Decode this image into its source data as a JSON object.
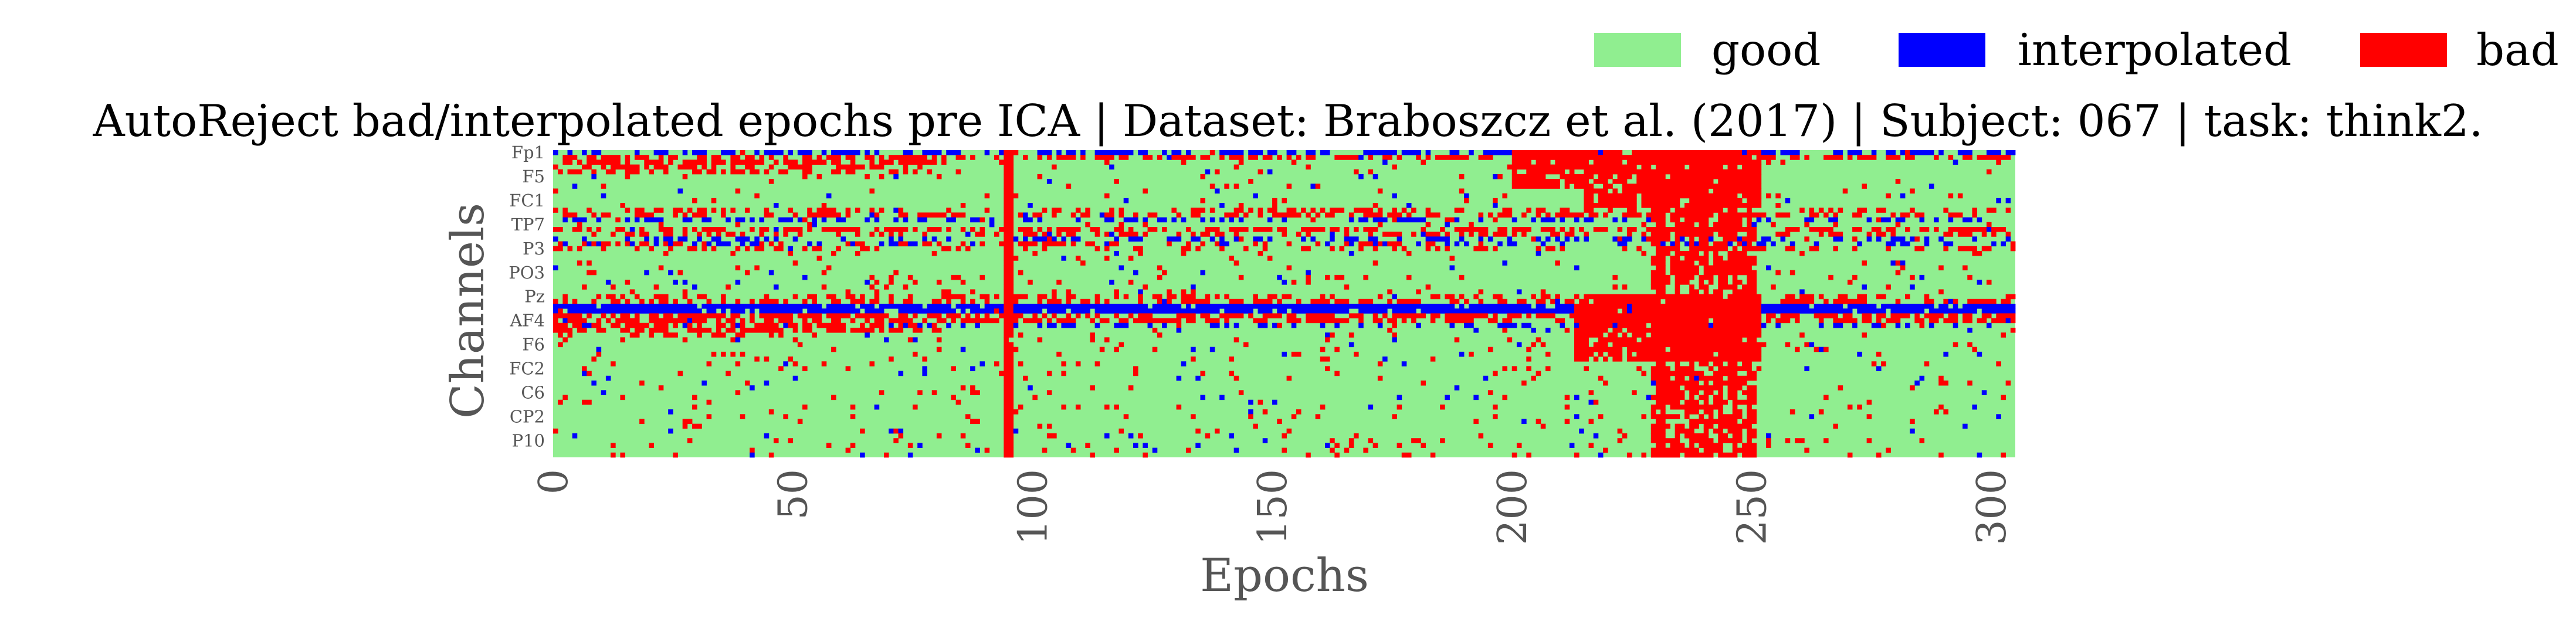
{
  "chart_data": {
    "type": "heatmap",
    "title": "AutoReject bad/interpolated epochs pre ICA | Dataset: Braboszcz et al. (2017) | Subject: 067 | task: think2.",
    "xlabel": "Epochs",
    "ylabel": "Channels",
    "xlim": [
      0,
      305
    ],
    "x_ticks": [
      "0",
      "50",
      "100",
      "150",
      "200",
      "250",
      "300"
    ],
    "y_tick_labels": [
      "Fp1",
      "F5",
      "FC1",
      "TP7",
      "P3",
      "PO3",
      "Pz",
      "AF4",
      "F6",
      "FC2",
      "C6",
      "CP2",
      "P10"
    ],
    "n_channels": 64,
    "legend": {
      "placement": "top-right",
      "entries": [
        {
          "label": "good",
          "color": "#90ee90"
        },
        {
          "label": "interpolated",
          "color": "#0000ff"
        },
        {
          "label": "bad",
          "color": "#ff0000"
        }
      ]
    },
    "colors": {
      "good": "#90ee90",
      "interpolated": "#0000ff",
      "bad": "#ff0000"
    },
    "patterns": {
      "interpolated_rows": [
        {
          "row": 0,
          "start": 0,
          "end": 305,
          "density": 0.55
        },
        {
          "row": 14,
          "start": 0,
          "end": 305,
          "density": 0.35
        },
        {
          "row": 18,
          "start": 0,
          "end": 305,
          "density": 0.3
        },
        {
          "row": 19,
          "start": 0,
          "end": 305,
          "density": 0.3
        },
        {
          "row": 32,
          "start": 0,
          "end": 305,
          "density": 0.9
        },
        {
          "row": 33,
          "start": 0,
          "end": 305,
          "density": 0.9
        },
        {
          "row": 36,
          "start": 0,
          "end": 305,
          "density": 0.25
        }
      ],
      "bad_rows": [
        {
          "row": 1,
          "start": 0,
          "end": 305,
          "density": 0.55
        },
        {
          "row": 2,
          "start": 0,
          "end": 80,
          "density": 0.7
        },
        {
          "row": 3,
          "start": 0,
          "end": 80,
          "density": 0.5
        },
        {
          "row": 4,
          "start": 0,
          "end": 80,
          "density": 0.35
        },
        {
          "row": 12,
          "start": 0,
          "end": 305,
          "density": 0.3
        },
        {
          "row": 13,
          "start": 0,
          "end": 305,
          "density": 0.4
        },
        {
          "row": 16,
          "start": 0,
          "end": 305,
          "density": 0.55
        },
        {
          "row": 17,
          "start": 0,
          "end": 305,
          "density": 0.35
        },
        {
          "row": 19,
          "start": 0,
          "end": 200,
          "density": 0.3
        },
        {
          "row": 20,
          "start": 0,
          "end": 305,
          "density": 0.25
        },
        {
          "row": 30,
          "start": 0,
          "end": 305,
          "density": 0.3
        },
        {
          "row": 31,
          "start": 0,
          "end": 305,
          "density": 0.45
        },
        {
          "row": 34,
          "start": 0,
          "end": 305,
          "density": 0.6
        },
        {
          "row": 35,
          "start": 0,
          "end": 305,
          "density": 0.55
        },
        {
          "row": 36,
          "start": 0,
          "end": 80,
          "density": 0.65
        },
        {
          "row": 37,
          "start": 0,
          "end": 80,
          "density": 0.55
        },
        {
          "row": 38,
          "start": 0,
          "end": 60,
          "density": 0.35
        }
      ],
      "bad_blocks": [
        {
          "row_start": 0,
          "row_end": 8,
          "start": 200,
          "end": 215,
          "density": 0.85
        },
        {
          "row_start": 0,
          "row_end": 12,
          "start": 215,
          "end": 252,
          "density": 0.85
        },
        {
          "row_start": 30,
          "row_end": 44,
          "start": 213,
          "end": 252,
          "density": 0.85
        },
        {
          "row_start": 0,
          "row_end": 64,
          "start": 229,
          "end": 251,
          "density": 0.55
        },
        {
          "row_start": 0,
          "row_end": 64,
          "start": 94,
          "end": 96,
          "density": 0.9
        }
      ],
      "bad_columns": [
        94,
        95,
        230,
        231,
        234,
        237,
        240,
        243,
        246,
        249
      ],
      "sparse_bad_density": 0.04,
      "sparse_interp_density": 0.012
    }
  }
}
